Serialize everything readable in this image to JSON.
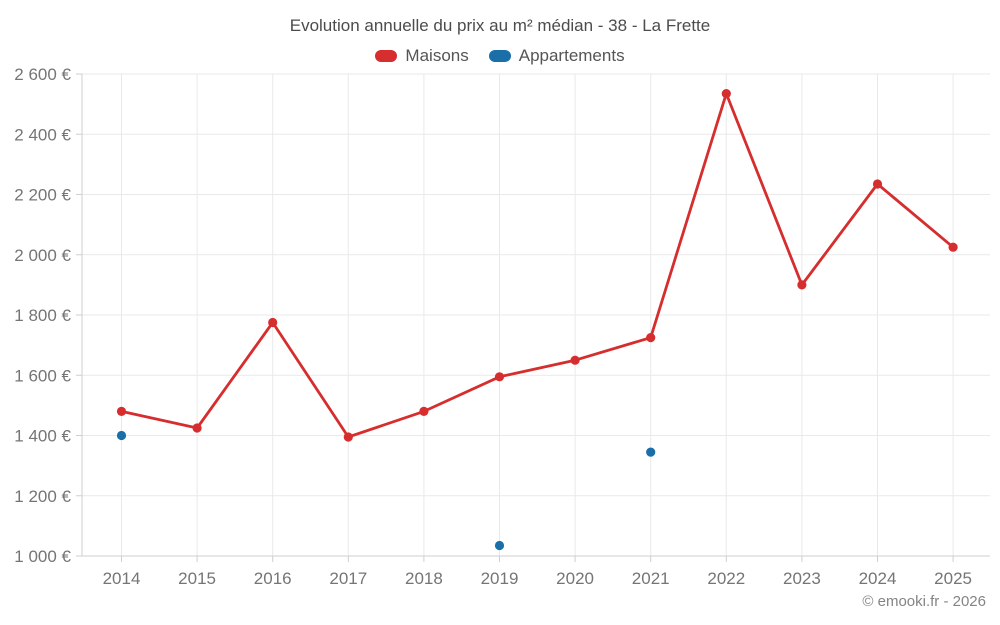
{
  "chart_data": {
    "type": "line",
    "title": "Evolution annuelle du prix au m² médian - 38 - La Frette",
    "categories": [
      "2014",
      "2015",
      "2016",
      "2017",
      "2018",
      "2019",
      "2020",
      "2021",
      "2022",
      "2023",
      "2024",
      "2025"
    ],
    "series": [
      {
        "name": "Maisons",
        "color": "#d62e2e",
        "line": true,
        "values": [
          1480,
          1425,
          1775,
          1395,
          1480,
          1595,
          1650,
          1725,
          2535,
          1900,
          2235,
          2025
        ]
      },
      {
        "name": "Appartements",
        "color": "#1a6fa8",
        "line": false,
        "values": [
          1400,
          null,
          null,
          null,
          null,
          1035,
          null,
          1345,
          null,
          null,
          null,
          null
        ]
      }
    ],
    "ylim": [
      1000,
      2600
    ],
    "ytick_step": 200,
    "y_suffix": "€",
    "grid": true,
    "legend_position": "top"
  },
  "footer": {
    "text": "© emooki.fr - 2026"
  }
}
